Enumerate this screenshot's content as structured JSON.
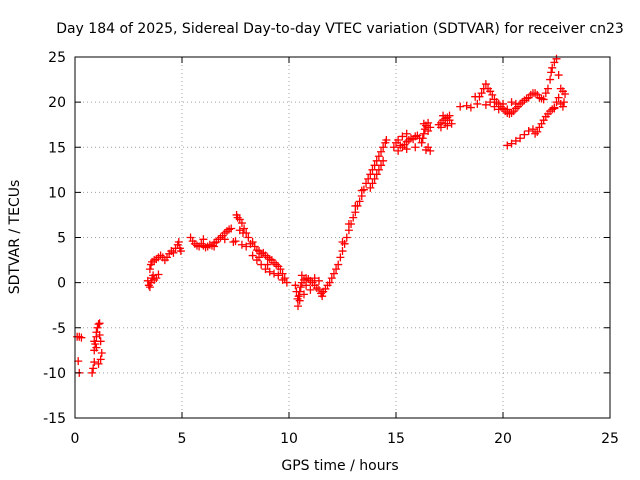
{
  "chart_data": {
    "type": "scatter",
    "title": "Day 184 of 2025, Sidereal Day-to-day VTEC variation (SDTVAR) for receiver cn23",
    "xlabel": "GPS time / hours",
    "ylabel": "SDTVAR / TECUs",
    "xlim": [
      0,
      25
    ],
    "ylim": [
      -15,
      25
    ],
    "xticks": [
      0,
      5,
      10,
      15,
      20,
      25
    ],
    "yticks": [
      -15,
      -10,
      -5,
      0,
      5,
      10,
      15,
      20,
      25
    ],
    "xtick_labels": [
      "0",
      "5",
      "10",
      "15",
      "20",
      "25"
    ],
    "ytick_labels": [
      "-15",
      "-10",
      "-5",
      "0",
      "5",
      "10",
      "15",
      "20",
      "25"
    ],
    "grid": true,
    "marker": "+",
    "series": [
      {
        "name": "SDTVAR",
        "color": "#ff0000",
        "points": [
          [
            0.1,
            -6.0
          ],
          [
            0.2,
            -6.0
          ],
          [
            0.3,
            -6.1
          ],
          [
            0.15,
            -8.7
          ],
          [
            0.2,
            -10.0
          ],
          [
            0.8,
            -10.0
          ],
          [
            0.85,
            -9.5
          ],
          [
            0.9,
            -8.8
          ],
          [
            0.9,
            -7.5
          ],
          [
            0.95,
            -6.8
          ],
          [
            1.0,
            -6.0
          ],
          [
            1.0,
            -5.5
          ],
          [
            1.05,
            -5.0
          ],
          [
            1.1,
            -4.6
          ],
          [
            1.15,
            -4.5
          ],
          [
            1.2,
            -6.5
          ],
          [
            1.25,
            -7.8
          ],
          [
            1.2,
            -8.5
          ],
          [
            1.1,
            -9.0
          ],
          [
            1.0,
            -7.2
          ],
          [
            0.9,
            -6.5
          ],
          [
            1.15,
            -5.8
          ],
          [
            3.4,
            0.2
          ],
          [
            3.45,
            -0.3
          ],
          [
            3.5,
            -0.5
          ],
          [
            3.55,
            0.0
          ],
          [
            3.6,
            0.5
          ],
          [
            3.65,
            0.8
          ],
          [
            3.7,
            0.3
          ],
          [
            3.8,
            0.5
          ],
          [
            3.9,
            0.9
          ],
          [
            3.5,
            1.5
          ],
          [
            3.55,
            2.0
          ],
          [
            3.6,
            2.3
          ],
          [
            3.7,
            2.5
          ],
          [
            3.8,
            2.6
          ],
          [
            3.9,
            2.8
          ],
          [
            4.0,
            3.0
          ],
          [
            4.1,
            2.8
          ],
          [
            4.2,
            2.5
          ],
          [
            4.3,
            2.8
          ],
          [
            4.4,
            3.2
          ],
          [
            4.5,
            3.5
          ],
          [
            4.6,
            3.3
          ],
          [
            4.7,
            3.8
          ],
          [
            4.8,
            4.2
          ],
          [
            4.85,
            4.5
          ],
          [
            4.9,
            3.8
          ],
          [
            4.95,
            3.5
          ],
          [
            5.4,
            5.0
          ],
          [
            5.5,
            4.6
          ],
          [
            5.6,
            4.3
          ],
          [
            5.7,
            4.1
          ],
          [
            5.8,
            4.0
          ],
          [
            5.9,
            4.3
          ],
          [
            6.0,
            4.1
          ],
          [
            6.1,
            3.9
          ],
          [
            6.2,
            4.0
          ],
          [
            6.3,
            4.2
          ],
          [
            6.4,
            4.1
          ],
          [
            6.5,
            4.4
          ],
          [
            6.6,
            4.5
          ],
          [
            6.7,
            4.8
          ],
          [
            6.8,
            5.0
          ],
          [
            6.9,
            5.2
          ],
          [
            7.0,
            5.5
          ],
          [
            7.1,
            5.7
          ],
          [
            7.2,
            5.9
          ],
          [
            7.3,
            6.0
          ],
          [
            6.0,
            4.8
          ],
          [
            6.5,
            4.0
          ],
          [
            7.0,
            4.8
          ],
          [
            7.4,
            4.5
          ],
          [
            7.5,
            4.6
          ],
          [
            7.55,
            7.5
          ],
          [
            7.6,
            7.2
          ],
          [
            7.7,
            7.0
          ],
          [
            7.8,
            6.6
          ],
          [
            7.85,
            5.5
          ],
          [
            7.9,
            6.0
          ],
          [
            8.0,
            5.5
          ],
          [
            8.1,
            5.0
          ],
          [
            7.7,
            5.8
          ],
          [
            7.8,
            4.2
          ],
          [
            8.0,
            4.0
          ],
          [
            8.2,
            4.3
          ],
          [
            8.3,
            4.5
          ],
          [
            8.4,
            4.0
          ],
          [
            8.5,
            3.6
          ],
          [
            8.6,
            3.5
          ],
          [
            8.7,
            3.2
          ],
          [
            8.8,
            3.3
          ],
          [
            8.9,
            3.0
          ],
          [
            9.0,
            2.8
          ],
          [
            9.1,
            2.6
          ],
          [
            9.2,
            2.5
          ],
          [
            9.3,
            2.2
          ],
          [
            9.4,
            2.0
          ],
          [
            9.5,
            1.8
          ],
          [
            9.6,
            1.5
          ],
          [
            9.7,
            1.0
          ],
          [
            9.8,
            0.5
          ],
          [
            9.9,
            0.0
          ],
          [
            8.5,
            2.5
          ],
          [
            8.7,
            2.0
          ],
          [
            8.9,
            1.5
          ],
          [
            9.1,
            1.2
          ],
          [
            9.3,
            1.0
          ],
          [
            9.5,
            0.8
          ],
          [
            9.7,
            0.3
          ],
          [
            8.3,
            3.0
          ],
          [
            8.6,
            2.8
          ],
          [
            9.0,
            2.0
          ],
          [
            10.3,
            -0.3
          ],
          [
            10.35,
            -1.0
          ],
          [
            10.4,
            -1.8
          ],
          [
            10.42,
            -2.6
          ],
          [
            10.45,
            -1.5
          ],
          [
            10.5,
            -1.0
          ],
          [
            10.55,
            -0.5
          ],
          [
            10.6,
            0.0
          ],
          [
            10.7,
            0.3
          ],
          [
            10.8,
            0.5
          ],
          [
            10.9,
            0.4
          ],
          [
            11.0,
            0.2
          ],
          [
            11.1,
            0.0
          ],
          [
            11.2,
            -0.3
          ],
          [
            11.3,
            -0.6
          ],
          [
            11.4,
            -0.8
          ],
          [
            11.5,
            -1.2
          ],
          [
            11.55,
            -1.5
          ],
          [
            11.6,
            -1.0
          ],
          [
            11.7,
            -0.7
          ],
          [
            11.8,
            -0.3
          ],
          [
            11.9,
            0.0
          ],
          [
            10.6,
            0.8
          ],
          [
            10.8,
            -0.3
          ],
          [
            11.0,
            -0.8
          ],
          [
            11.2,
            0.5
          ],
          [
            11.4,
            0.2
          ],
          [
            10.5,
            -2.0
          ],
          [
            10.7,
            -1.3
          ],
          [
            12.0,
            0.5
          ],
          [
            12.1,
            1.0
          ],
          [
            12.2,
            1.5
          ],
          [
            12.3,
            2.0
          ],
          [
            12.4,
            2.8
          ],
          [
            12.5,
            3.5
          ],
          [
            12.6,
            4.3
          ],
          [
            12.7,
            5.0
          ],
          [
            12.8,
            5.8
          ],
          [
            12.9,
            6.5
          ],
          [
            13.0,
            7.2
          ],
          [
            13.1,
            7.8
          ],
          [
            13.2,
            8.5
          ],
          [
            13.3,
            9.0
          ],
          [
            13.4,
            9.6
          ],
          [
            13.5,
            10.3
          ],
          [
            13.6,
            11.0
          ],
          [
            13.7,
            11.5
          ],
          [
            13.8,
            12.0
          ],
          [
            13.9,
            12.5
          ],
          [
            14.0,
            13.0
          ],
          [
            14.1,
            13.5
          ],
          [
            14.2,
            14.0
          ],
          [
            14.3,
            14.5
          ],
          [
            14.4,
            15.0
          ],
          [
            14.5,
            15.5
          ],
          [
            14.55,
            15.8
          ],
          [
            13.8,
            10.5
          ],
          [
            13.9,
            11.0
          ],
          [
            14.0,
            11.5
          ],
          [
            14.1,
            12.0
          ],
          [
            14.2,
            12.5
          ],
          [
            14.3,
            13.0
          ],
          [
            14.4,
            13.5
          ],
          [
            12.5,
            4.5
          ],
          [
            12.8,
            6.5
          ],
          [
            13.1,
            8.5
          ],
          [
            13.4,
            10.2
          ],
          [
            14.9,
            15.0
          ],
          [
            15.0,
            15.5
          ],
          [
            15.1,
            15.8
          ],
          [
            15.2,
            15.2
          ],
          [
            15.3,
            15.0
          ],
          [
            15.4,
            15.3
          ],
          [
            15.5,
            15.6
          ],
          [
            15.6,
            15.8
          ],
          [
            15.7,
            16.0
          ],
          [
            15.8,
            15.9
          ],
          [
            15.9,
            16.2
          ],
          [
            16.0,
            16.3
          ],
          [
            16.1,
            16.0
          ],
          [
            15.1,
            14.6
          ],
          [
            15.5,
            14.8
          ],
          [
            15.9,
            15.0
          ],
          [
            15.5,
            16.5
          ],
          [
            15.3,
            16.2
          ],
          [
            16.4,
            14.7
          ],
          [
            16.5,
            15.0
          ],
          [
            16.6,
            14.6
          ],
          [
            16.2,
            15.5
          ],
          [
            16.25,
            16.0
          ],
          [
            16.3,
            16.5
          ],
          [
            16.35,
            17.0
          ],
          [
            16.4,
            17.4
          ],
          [
            16.5,
            17.7
          ],
          [
            16.6,
            17.2
          ],
          [
            16.3,
            17.6
          ],
          [
            16.5,
            16.8
          ],
          [
            17.0,
            17.5
          ],
          [
            17.1,
            17.7
          ],
          [
            17.2,
            18.0
          ],
          [
            17.3,
            18.2
          ],
          [
            17.4,
            18.3
          ],
          [
            17.5,
            18.0
          ],
          [
            17.6,
            17.6
          ],
          [
            17.1,
            17.2
          ],
          [
            17.3,
            17.6
          ],
          [
            17.5,
            18.5
          ],
          [
            17.2,
            18.5
          ],
          [
            17.4,
            17.4
          ],
          [
            18.0,
            19.5
          ],
          [
            18.3,
            19.6
          ],
          [
            18.5,
            19.4
          ],
          [
            18.8,
            19.8
          ],
          [
            18.7,
            20.6
          ],
          [
            18.9,
            20.6
          ],
          [
            19.0,
            21.0
          ],
          [
            19.1,
            21.5
          ],
          [
            19.2,
            22.0
          ],
          [
            19.3,
            21.5
          ],
          [
            19.4,
            21.2
          ],
          [
            19.5,
            20.8
          ],
          [
            19.6,
            20.3
          ],
          [
            19.7,
            20.0
          ],
          [
            19.8,
            19.8
          ],
          [
            19.9,
            19.5
          ],
          [
            20.0,
            19.3
          ],
          [
            20.1,
            19.0
          ],
          [
            20.2,
            18.8
          ],
          [
            20.3,
            18.7
          ],
          [
            20.4,
            18.8
          ],
          [
            20.5,
            19.0
          ],
          [
            20.6,
            19.3
          ],
          [
            20.7,
            19.5
          ],
          [
            20.8,
            19.8
          ],
          [
            20.9,
            20.0
          ],
          [
            21.0,
            20.2
          ],
          [
            21.1,
            20.4
          ],
          [
            21.2,
            20.5
          ],
          [
            21.3,
            20.8
          ],
          [
            21.4,
            21.0
          ],
          [
            21.5,
            21.0
          ],
          [
            21.6,
            20.8
          ],
          [
            21.7,
            20.5
          ],
          [
            21.8,
            20.4
          ],
          [
            21.9,
            20.3
          ],
          [
            22.0,
            21.0
          ],
          [
            22.1,
            21.5
          ],
          [
            22.2,
            22.5
          ],
          [
            22.25,
            23.3
          ],
          [
            22.3,
            23.8
          ],
          [
            22.4,
            24.4
          ],
          [
            22.5,
            24.8
          ],
          [
            22.6,
            23.0
          ],
          [
            22.7,
            21.5
          ],
          [
            22.8,
            21.2
          ],
          [
            22.9,
            20.9
          ],
          [
            22.85,
            20.0
          ],
          [
            22.8,
            19.5
          ],
          [
            22.7,
            19.8
          ],
          [
            22.6,
            20.5
          ],
          [
            22.5,
            20.0
          ],
          [
            22.4,
            19.4
          ],
          [
            19.4,
            20.0
          ],
          [
            19.6,
            19.5
          ],
          [
            19.8,
            19.2
          ],
          [
            20.0,
            19.8
          ],
          [
            20.2,
            19.2
          ],
          [
            20.4,
            20.0
          ],
          [
            20.6,
            19.8
          ],
          [
            19.2,
            19.7
          ],
          [
            20.2,
            15.2
          ],
          [
            20.4,
            15.4
          ],
          [
            20.6,
            15.7
          ],
          [
            20.8,
            16.0
          ],
          [
            21.0,
            16.4
          ],
          [
            21.2,
            16.8
          ],
          [
            21.4,
            17.0
          ],
          [
            21.5,
            16.5
          ],
          [
            21.6,
            16.7
          ],
          [
            21.7,
            17.2
          ],
          [
            21.8,
            17.6
          ],
          [
            21.9,
            18.0
          ],
          [
            22.0,
            18.4
          ],
          [
            22.1,
            18.7
          ],
          [
            22.2,
            19.0
          ],
          [
            22.3,
            19.2
          ],
          [
            22.4,
            19.3
          ]
        ]
      }
    ]
  }
}
